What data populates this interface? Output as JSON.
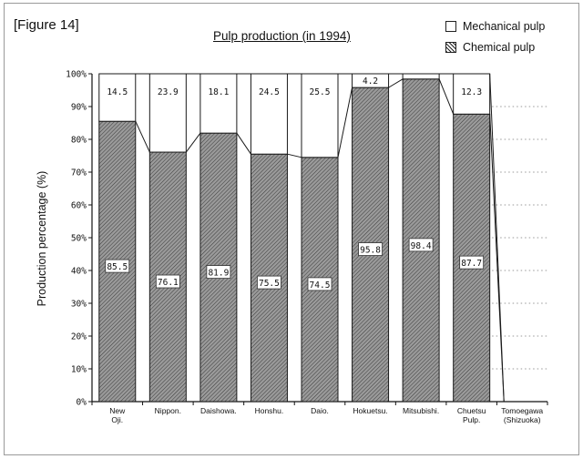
{
  "figure_label": "[Figure 14]",
  "chart_data": {
    "type": "bar",
    "stacked": true,
    "title": "Pulp production (in 1994)",
    "ylabel": "Production percentage (%)",
    "xlabel": "",
    "ylim": [
      0,
      100
    ],
    "yticks": [
      "0%",
      "10%",
      "20%",
      "30%",
      "40%",
      "50%",
      "60%",
      "70%",
      "80%",
      "90%",
      "100%"
    ],
    "categories": [
      "New Oji.",
      "Nippon.",
      "Daishowa.",
      "Honshu.",
      "Daio.",
      "Hokuetsu.",
      "Mitsubishi.",
      "Chuetsu Pulp.",
      "Tomoegawa (Shizuoka)"
    ],
    "series": [
      {
        "name": "Chemical pulp",
        "values": [
          85.5,
          76.1,
          81.9,
          75.5,
          74.5,
          95.8,
          98.4,
          87.7,
          0
        ],
        "labels": [
          "85.5",
          "76.1",
          "81.9",
          "75.5",
          "74.5",
          "95.8",
          "98.4",
          "87.7",
          ""
        ]
      },
      {
        "name": "Mechanical pulp",
        "values": [
          14.5,
          23.9,
          18.1,
          24.5,
          25.5,
          4.2,
          1.6,
          12.3,
          0
        ],
        "labels": [
          "14.5",
          "23.9",
          "18.1",
          "24.5",
          "25.5",
          "4.2",
          "",
          "12.3",
          ""
        ]
      }
    ],
    "legend_position": "top-right",
    "grid": "dotted horizontal (right side)",
    "colors": {
      "chemical": "#8c8c8c",
      "mechanical": "#ffffff",
      "outline": "#1a1a1a"
    }
  }
}
